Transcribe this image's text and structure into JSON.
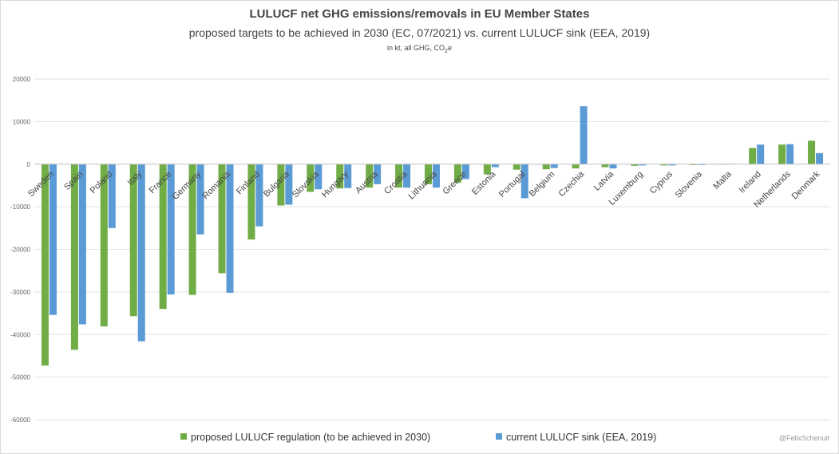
{
  "colors": {
    "regulation": "#70ad47",
    "sink": "#5b9bd5",
    "grid": "#e3e3e3",
    "axis": "#bfbfbf"
  },
  "credit": "@FelixSchenuit",
  "chart_data": {
    "type": "bar",
    "title": "LULUCF net GHG emissions/removals in EU Member States",
    "subtitle": "proposed targets to be achieved in 2030 (EC, 07/2021) vs. current LULUCF sink (EEA, 2019)",
    "unit_prefix": "in kt, all GHG, CO",
    "unit_sub": "2",
    "unit_suffix": "e",
    "xlabel": "",
    "ylabel": "",
    "ylim": [
      -60000,
      20000
    ],
    "yticks": [
      20000,
      10000,
      0,
      -10000,
      -20000,
      -30000,
      -40000,
      -50000,
      -60000
    ],
    "grid": true,
    "legend_position": "bottom",
    "categories": [
      "Sweden",
      "Spain",
      "Poland",
      "Italy",
      "France",
      "Germany",
      "Romania",
      "Finland",
      "Bulgaria",
      "Slovakia",
      "Hungary",
      "Austria",
      "Croatia",
      "Lithuania",
      "Greece",
      "Estonia",
      "Portugal",
      "Belgium",
      "Czechia",
      "Latvia",
      "Luxemburg",
      "Cyprus",
      "Slovenia",
      "Malta",
      "Ireland",
      "Netherlands",
      "Denmark"
    ],
    "series": [
      {
        "name": "proposed LULUCF regulation (to be achieved in 2030)",
        "values": [
          -47300,
          -43600,
          -38100,
          -35700,
          -34000,
          -30700,
          -25600,
          -17700,
          -9700,
          -6500,
          -5700,
          -5500,
          -5500,
          -4700,
          -4300,
          -2400,
          -1300,
          -1200,
          -1000,
          -700,
          -400,
          -300,
          -200,
          0,
          3800,
          4600,
          5500
        ]
      },
      {
        "name": "current LULUCF sink (EEA, 2019)",
        "values": [
          -35400,
          -37600,
          -15000,
          -41600,
          -30600,
          -16500,
          -30200,
          -14600,
          -9500,
          -5900,
          -5600,
          -4700,
          -5500,
          -5500,
          -3500,
          -700,
          -8000,
          -900,
          13600,
          -1000,
          -300,
          -300,
          -200,
          100,
          4600,
          4700,
          2600
        ]
      }
    ]
  }
}
